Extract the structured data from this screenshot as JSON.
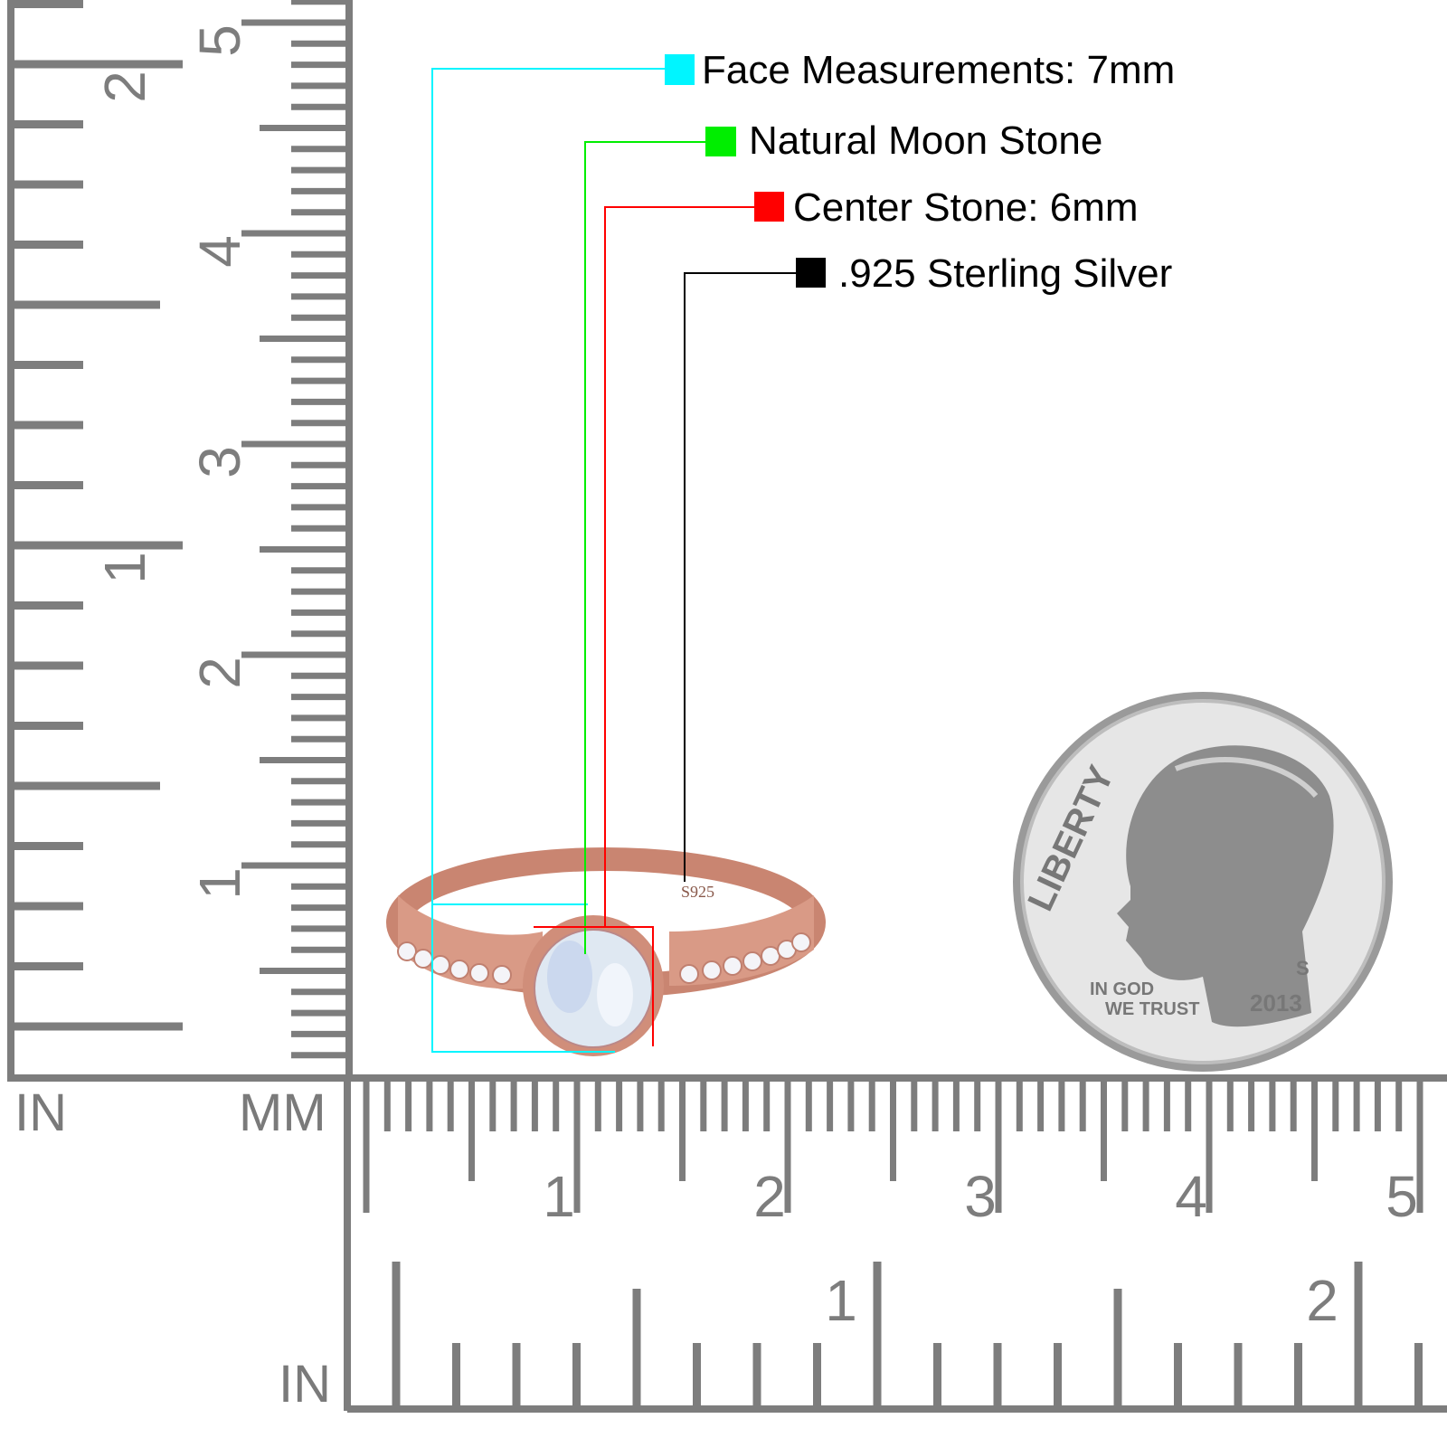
{
  "legend": [
    {
      "label": "Face Measurements: 7mm",
      "color": "#00f5ff"
    },
    {
      "label": "Natural Moon Stone",
      "color": "#00ee00"
    },
    {
      "label": "Center Stone: 6mm",
      "color": "#ff0000"
    },
    {
      "label": ".925 Sterling Silver",
      "color": "#000000"
    }
  ],
  "ring": {
    "stamp": "S925",
    "metal_color": "#d99a86",
    "stone_color": "#dfe8f2"
  },
  "coin": {
    "motto_top": "LIBERTY",
    "motto_bottom_1": "IN GOD",
    "motto_bottom_2": "WE TRUST",
    "year": "2013",
    "mint_mark": "S"
  },
  "rulers": {
    "in_label_left": "IN",
    "mm_label": "MM",
    "in_label_bottom": "IN",
    "vertical_cm_labels": [
      "1",
      "2",
      "3",
      "4",
      "5"
    ],
    "vertical_in_labels": [
      "1",
      "2"
    ],
    "horizontal_cm_labels": [
      "1",
      "2",
      "3",
      "4",
      "5"
    ],
    "horizontal_in_labels": [
      "1",
      "2"
    ],
    "tick_color": "#7d7d7d"
  }
}
